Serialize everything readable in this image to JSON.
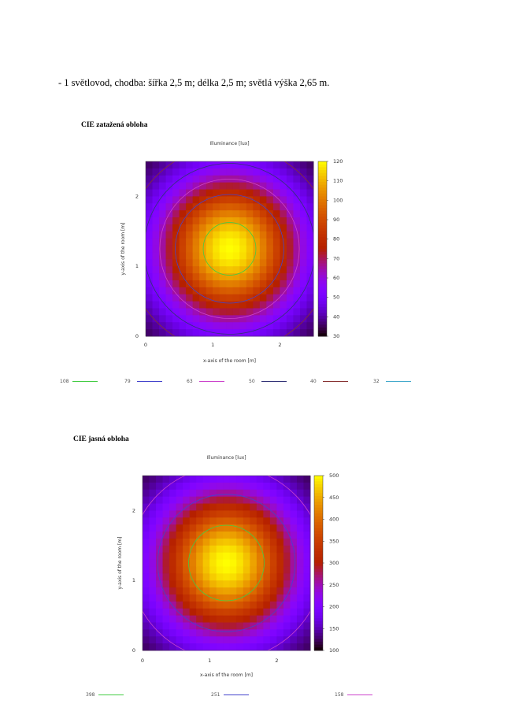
{
  "heading": "- 1 světlovod, chodba: šířka 2,5 m; délka 2,5 m; světlá výška 2,65 m.",
  "chart_data": [
    {
      "type": "heatmap",
      "label": "CIE zatažená obloha",
      "title": "Illuminance [lux]",
      "xlabel": "x-axis of the room [m]",
      "ylabel": "y-axis of the room [m]",
      "xlim": [
        0,
        2.5
      ],
      "ylim": [
        0,
        2.5
      ],
      "xticks": [
        "0",
        "1",
        "2"
      ],
      "yticks": [
        "0",
        "1",
        "2"
      ],
      "colorbar": {
        "min": 30,
        "max": 120,
        "ticks": [
          "30",
          "40",
          "50",
          "60",
          "70",
          "80",
          "90",
          "100",
          "110",
          "120"
        ]
      },
      "center": [
        1.25,
        1.25
      ],
      "peak": 120,
      "corner_value": 30,
      "contours": [
        {
          "label": "108",
          "value": 108,
          "color": "#44cc44"
        },
        {
          "label": "79",
          "value": 79,
          "color": "#4444cc"
        },
        {
          "label": "63",
          "value": 63,
          "color": "#cc44cc"
        },
        {
          "label": "50",
          "value": 50,
          "color": "#333377"
        },
        {
          "label": "40",
          "value": 40,
          "color": "#883333"
        },
        {
          "label": "32",
          "value": 32,
          "color": "#44aacc"
        }
      ]
    },
    {
      "type": "heatmap",
      "label": "CIE jasná obloha",
      "title": "Illuminance [lux]",
      "xlabel": "x-axis of the room [m]",
      "ylabel": "y-axis of the room [m]",
      "xlim": [
        0,
        2.5
      ],
      "ylim": [
        0,
        2.5
      ],
      "xticks": [
        "0",
        "1",
        "2"
      ],
      "yticks": [
        "0",
        "1",
        "2"
      ],
      "colorbar": {
        "min": 100,
        "max": 500,
        "ticks": [
          "100",
          "150",
          "200",
          "250",
          "300",
          "350",
          "400",
          "450",
          "500"
        ]
      },
      "center": [
        1.25,
        1.25
      ],
      "peak": 500,
      "corner_value": 100,
      "contours": [
        {
          "label": "398",
          "value": 398,
          "color": "#44cc44"
        },
        {
          "label": "251",
          "value": 251,
          "color": "#4444cc"
        },
        {
          "label": "158",
          "value": 158,
          "color": "#cc44cc"
        }
      ]
    }
  ]
}
